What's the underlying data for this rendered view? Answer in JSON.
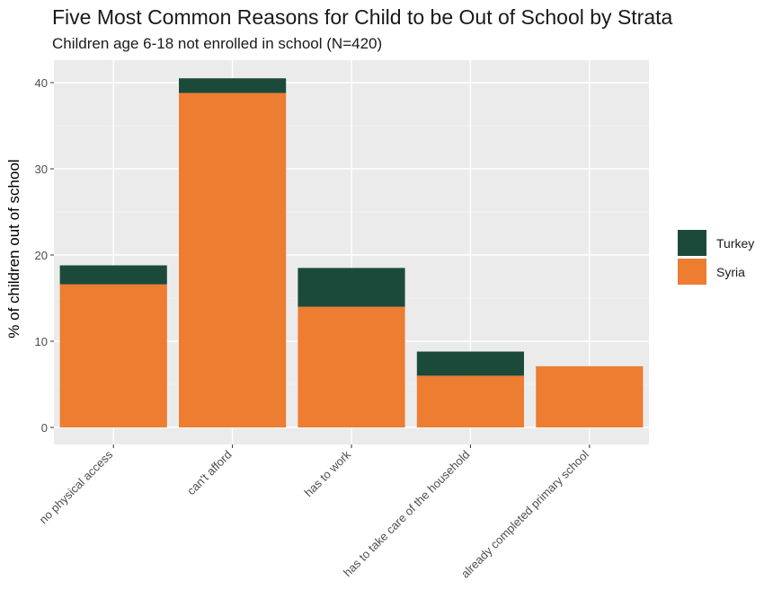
{
  "chart_data": {
    "type": "bar",
    "stacked": true,
    "title": "Five Most Common Reasons for Child to be Out of School by Strata",
    "subtitle": "Children age 6-18 not enrolled in school (N=420)",
    "xlabel": "",
    "ylabel": "% of children out of school",
    "ylim": [
      0,
      42
    ],
    "yticks": [
      0,
      10,
      20,
      30,
      40
    ],
    "grid": true,
    "legend_position": "right",
    "categories": [
      "no physical access",
      "can't afford",
      "has to work",
      "has to take care of the household",
      "already completed primary school"
    ],
    "series": [
      {
        "name": "Syria",
        "color": "#ed7d31",
        "values": [
          16.6,
          38.8,
          14.0,
          6.0,
          7.1
        ]
      },
      {
        "name": "Turkey",
        "color": "#1b4a3b",
        "values": [
          2.2,
          1.7,
          4.5,
          2.8,
          0.0
        ]
      }
    ],
    "legend": [
      {
        "name": "Turkey",
        "color": "#1b4a3b"
      },
      {
        "name": "Syria",
        "color": "#ed7d31"
      }
    ]
  }
}
